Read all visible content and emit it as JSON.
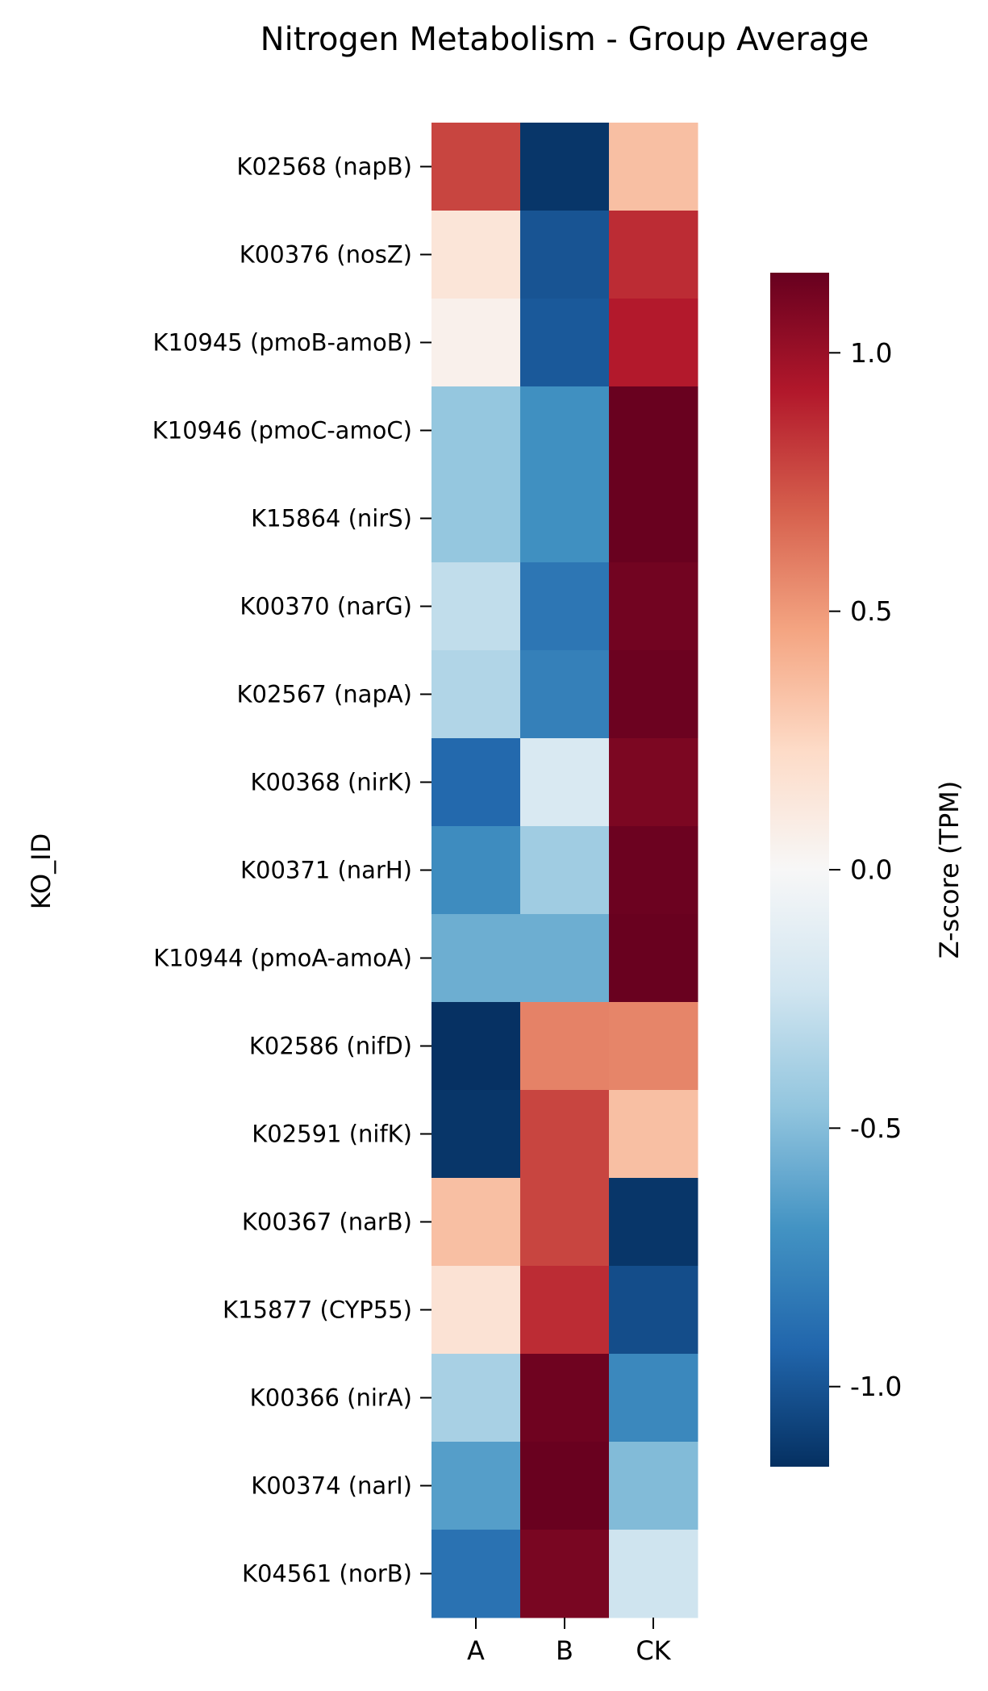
{
  "chart_data": {
    "type": "heatmap",
    "title": "Nitrogen Metabolism - Group Average",
    "xlabel": "",
    "ylabel": "KO_ID",
    "colorbar_label": "Z-score (TPM)",
    "colormap": "RdBu_r",
    "vmin": -1.155,
    "vmax": 1.155,
    "colorbar_ticks": [
      1.0,
      0.5,
      0.0,
      -0.5,
      -1.0
    ],
    "colorbar_tick_labels": [
      "1.0",
      "0.5",
      "0.0",
      "-0.5",
      "-1.0"
    ],
    "columns": [
      "A",
      "B",
      "CK"
    ],
    "rows": [
      "K02568 (napB)",
      "K00376 (nosZ)",
      "K10945 (pmoB-amoB)",
      "K10946 (pmoC-amoC)",
      "K15864 (nirS)",
      "K00370 (narG)",
      "K02567 (napA)",
      "K00368 (nirK)",
      "K00371 (narH)",
      "K10944 (pmoA-amoA)",
      "K02586 (nifD)",
      "K02591 (nifK)",
      "K00367 (narB)",
      "K15877 (CYP55)",
      "K00366 (nirA)",
      "K00374 (narI)",
      "K04561 (norB)"
    ],
    "values": [
      [
        0.78,
        -1.13,
        0.35
      ],
      [
        0.15,
        -1.0,
        0.86
      ],
      [
        0.06,
        -0.98,
        0.92
      ],
      [
        -0.45,
        -0.71,
        1.15
      ],
      [
        -0.45,
        -0.71,
        1.15
      ],
      [
        -0.29,
        -0.84,
        1.12
      ],
      [
        -0.35,
        -0.79,
        1.14
      ],
      [
        -0.91,
        -0.18,
        1.09
      ],
      [
        -0.73,
        -0.41,
        1.14
      ],
      [
        -0.57,
        -0.57,
        1.15
      ],
      [
        -1.15,
        0.58,
        0.57
      ],
      [
        -1.13,
        0.78,
        0.35
      ],
      [
        0.35,
        0.78,
        -1.13
      ],
      [
        0.17,
        0.86,
        -1.03
      ],
      [
        -0.38,
        1.13,
        -0.75
      ],
      [
        -0.64,
        1.15,
        -0.51
      ],
      [
        -0.86,
        1.1,
        -0.24
      ]
    ]
  }
}
